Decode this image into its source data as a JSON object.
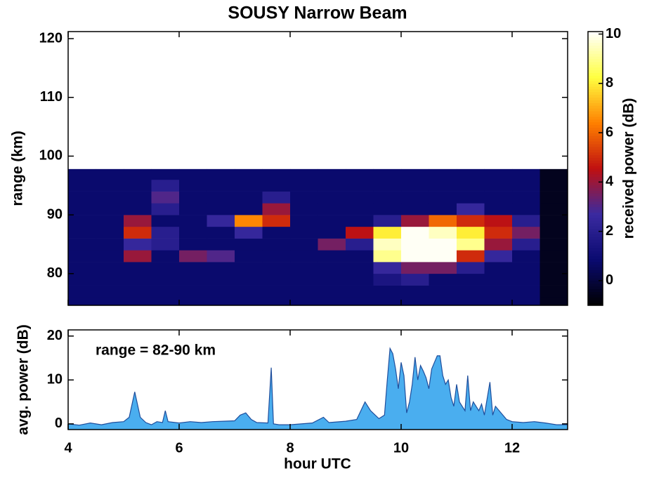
{
  "chart_data": [
    {
      "type": "heatmap",
      "title": "SOUSY Narrow Beam",
      "y_label": "range (km)",
      "colorbar_label": "received power (dB)",
      "xlim": [
        4,
        13
      ],
      "xticks": [
        4,
        6,
        8,
        10,
        12
      ],
      "ylim": [
        74.6,
        121.2
      ],
      "yticks": [
        80,
        90,
        100,
        110,
        120
      ],
      "zlim": [
        -1,
        10.1
      ],
      "zticks": [
        0,
        2,
        4,
        6,
        8,
        10
      ],
      "colors": [
        "#000000",
        "#0a0a70",
        "#3a2aa0",
        "#c01010",
        "#ff8000",
        "#ffff40",
        "#ffffff"
      ],
      "xbins": [
        4,
        4.5,
        5,
        5.5,
        6,
        6.5,
        7,
        7.5,
        8,
        8.5,
        9,
        9.5,
        10,
        10.5,
        11,
        11.5,
        12,
        12.5,
        13
      ],
      "ybins": [
        74.6,
        76,
        78,
        80,
        82,
        84,
        86,
        88,
        90,
        92,
        94,
        96,
        97.8
      ],
      "z": [
        [
          0.8,
          0.8,
          0.8,
          0.8,
          0.8,
          0.8,
          0.8,
          0.8,
          0.8,
          0.8,
          0.8,
          0.8,
          0.8,
          0.8,
          0.8,
          0.8,
          0.8,
          -0.5
        ],
        [
          0.8,
          0.8,
          0.8,
          0.8,
          0.8,
          0.8,
          0.8,
          0.8,
          0.8,
          0.8,
          0.8,
          0.8,
          0.8,
          0.8,
          0.8,
          0.8,
          0.8,
          -0.5
        ],
        [
          0.8,
          0.8,
          0.8,
          0.8,
          0.8,
          0.8,
          0.8,
          0.8,
          0.8,
          0.8,
          0.8,
          1.5,
          2,
          0.8,
          0.8,
          0.8,
          0.8,
          -0.5
        ],
        [
          0.8,
          0.8,
          0.8,
          0.8,
          0.8,
          0.8,
          0.8,
          0.8,
          0.8,
          0.8,
          0.8,
          2.5,
          3.5,
          3.5,
          2,
          0.8,
          0.8,
          -0.5
        ],
        [
          0.8,
          0.8,
          4,
          0.8,
          3.5,
          3,
          0.8,
          0.8,
          0.8,
          0.8,
          0.8,
          9,
          10,
          10,
          5,
          2.5,
          0.8,
          -0.5
        ],
        [
          0.8,
          0.8,
          2.5,
          2,
          0.8,
          0.8,
          0.8,
          0.8,
          0.8,
          3.5,
          2,
          9.5,
          10,
          10,
          9,
          4,
          2,
          -0.5
        ],
        [
          0.8,
          0.8,
          5,
          2,
          0.8,
          0.8,
          2.5,
          0.8,
          0.8,
          0.8,
          4.5,
          8,
          10,
          9.5,
          8,
          5,
          3.5,
          -0.5
        ],
        [
          0.8,
          0.8,
          4,
          0.8,
          0.8,
          2.5,
          6.5,
          5,
          0.8,
          0.8,
          0.8,
          2,
          4,
          6,
          5,
          4.5,
          2,
          -0.5
        ],
        [
          0.8,
          0.8,
          0.8,
          2,
          0.8,
          0.8,
          0.8,
          4,
          0.8,
          0.8,
          0.8,
          0.8,
          0.8,
          0.8,
          2.5,
          0.8,
          0.8,
          -0.5
        ],
        [
          0.8,
          0.8,
          0.8,
          3,
          0.8,
          0.8,
          0.8,
          2,
          0.8,
          0.8,
          0.8,
          0.8,
          0.8,
          0.8,
          0.8,
          0.8,
          0.8,
          -0.5
        ],
        [
          0.8,
          0.8,
          0.8,
          2,
          0.8,
          0.8,
          0.8,
          0.8,
          0.8,
          0.8,
          0.8,
          0.8,
          0.8,
          0.8,
          0.8,
          0.8,
          0.8,
          -0.5
        ],
        [
          0.8,
          0.8,
          0.8,
          0.8,
          0.8,
          0.8,
          0.8,
          0.8,
          0.8,
          0.8,
          0.8,
          0.8,
          0.8,
          0.8,
          0.8,
          0.8,
          0.8,
          -0.5
        ]
      ]
    },
    {
      "type": "area",
      "x_label": "hour UTC",
      "y_label": "avg. power (dB)",
      "annotation": "range = 82-90 km",
      "color": "#4aaeef",
      "line_color": "#1f4e9c",
      "xlim": [
        4,
        13
      ],
      "xticks": [
        4,
        6,
        8,
        10,
        12
      ],
      "ylim": [
        -1.3,
        21.4
      ],
      "yticks": [
        0,
        10,
        20
      ],
      "x": [
        4.0,
        4.2,
        4.4,
        4.6,
        4.8,
        5.0,
        5.1,
        5.2,
        5.3,
        5.4,
        5.5,
        5.6,
        5.7,
        5.75,
        5.8,
        6.0,
        6.2,
        6.4,
        6.6,
        6.8,
        7.0,
        7.1,
        7.2,
        7.3,
        7.4,
        7.6,
        7.66,
        7.7,
        7.8,
        8.0,
        8.2,
        8.4,
        8.6,
        8.7,
        9.0,
        9.2,
        9.35,
        9.45,
        9.6,
        9.7,
        9.75,
        9.8,
        9.85,
        9.9,
        9.95,
        10.0,
        10.05,
        10.1,
        10.15,
        10.2,
        10.25,
        10.3,
        10.35,
        10.4,
        10.45,
        10.5,
        10.55,
        10.6,
        10.65,
        10.7,
        10.75,
        10.8,
        10.85,
        10.9,
        10.95,
        11.0,
        11.05,
        11.1,
        11.15,
        11.2,
        11.25,
        11.3,
        11.4,
        11.45,
        11.5,
        11.6,
        11.65,
        11.7,
        11.8,
        11.9,
        12.0,
        12.2,
        12.4,
        12.6,
        12.8,
        13.0
      ],
      "values": [
        0,
        -0.3,
        0.2,
        -0.2,
        0.3,
        0.5,
        1.5,
        7.3,
        1.5,
        0.3,
        -0.2,
        0.5,
        0.3,
        3,
        0.5,
        0.2,
        0.5,
        0.3,
        0.5,
        0.6,
        0.7,
        2,
        2.5,
        1,
        0.3,
        0.2,
        12.8,
        0,
        -0.2,
        -0.2,
        0,
        0.2,
        1.5,
        0.3,
        0.6,
        1,
        5,
        3,
        1.2,
        2,
        10,
        17.2,
        16,
        12.5,
        8,
        14,
        11,
        2.5,
        5,
        9,
        15.2,
        10,
        13.3,
        12,
        10.5,
        8,
        12.5,
        14,
        15.5,
        15.5,
        11,
        9,
        10,
        6,
        4,
        9,
        5,
        4,
        3,
        11,
        3,
        5,
        3,
        4.5,
        2,
        9.5,
        2,
        4,
        2.5,
        1,
        0.5,
        0.3,
        0.5,
        0.2,
        -0.2,
        -0.2
      ]
    }
  ]
}
